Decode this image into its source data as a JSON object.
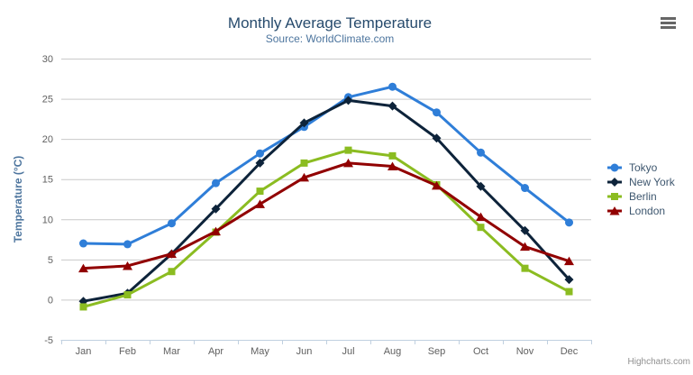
{
  "header": {
    "title": "Monthly Average Temperature",
    "subtitle": "Source: WorldClimate.com"
  },
  "credits": "Highcharts.com",
  "export_menu": {
    "icon": "hamburger-icon"
  },
  "chart_data": {
    "type": "line",
    "title": "Monthly Average Temperature",
    "subtitle": "Source: WorldClimate.com",
    "categories": [
      "Jan",
      "Feb",
      "Mar",
      "Apr",
      "May",
      "Jun",
      "Jul",
      "Aug",
      "Sep",
      "Oct",
      "Nov",
      "Dec"
    ],
    "series": [
      {
        "name": "Tokyo",
        "color": "#2f7ed8",
        "marker": "circle",
        "values": [
          7.0,
          6.9,
          9.5,
          14.5,
          18.2,
          21.5,
          25.2,
          26.5,
          23.3,
          18.3,
          13.9,
          9.6
        ]
      },
      {
        "name": "New York",
        "color": "#0d233a",
        "marker": "diamond",
        "values": [
          -0.2,
          0.8,
          5.7,
          11.3,
          17.0,
          22.0,
          24.8,
          24.1,
          20.1,
          14.1,
          8.6,
          2.5
        ]
      },
      {
        "name": "Berlin",
        "color": "#8bbc21",
        "marker": "square",
        "values": [
          -0.9,
          0.6,
          3.5,
          8.4,
          13.5,
          17.0,
          18.6,
          17.9,
          14.3,
          9.0,
          3.9,
          1.0
        ]
      },
      {
        "name": "London",
        "color": "#910000",
        "marker": "triangle",
        "values": [
          3.9,
          4.2,
          5.7,
          8.5,
          11.9,
          15.2,
          17.0,
          16.6,
          14.2,
          10.3,
          6.6,
          4.8
        ]
      }
    ],
    "xlabel": "",
    "ylabel": "Temperature (°C)",
    "ylim": [
      -5,
      30
    ],
    "ytick_step": 5,
    "grid": true,
    "legend_position": "right",
    "colors": {
      "title_text": "#274b6d",
      "subtitle_text": "#4d759e",
      "axis_label": "#606060",
      "y_axis_title": "#4d759e",
      "gridline": "#c9c9c9",
      "axis_line": "#c0d0e0",
      "legend_text": "#3e576f",
      "credits_text": "#909090"
    }
  }
}
